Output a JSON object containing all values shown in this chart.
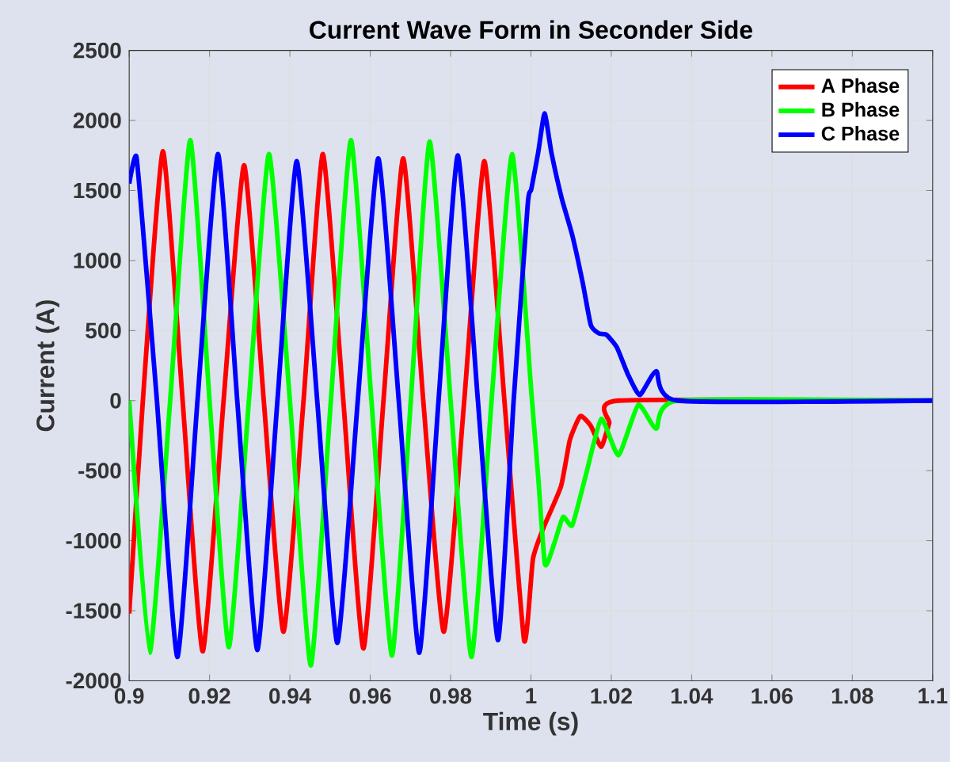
{
  "chart_data": {
    "type": "line",
    "title": "Current Wave Form in Seconder Side",
    "xlabel": "Time (s)",
    "ylabel": "Current (A)",
    "xlim": [
      0.9,
      1.1
    ],
    "ylim": [
      -2000,
      2500
    ],
    "xticks": [
      0.9,
      0.92,
      0.94,
      0.96,
      0.98,
      1,
      1.02,
      1.04,
      1.06,
      1.08,
      1.1
    ],
    "yticks": [
      -2000,
      -1500,
      -1000,
      -500,
      0,
      500,
      1000,
      1500,
      2000,
      2500
    ],
    "grid": true,
    "legend": "top right",
    "marker": "none",
    "line_style": "solid",
    "series": [
      {
        "name": "A Phase",
        "color": "#ff0000",
        "x": [
          0.9,
          0.9034,
          0.9084,
          0.9133,
          0.9183,
          0.9235,
          0.9286,
          0.9335,
          0.9384,
          0.9434,
          0.9482,
          0.9533,
          0.9583,
          0.9633,
          0.9682,
          0.9732,
          0.9783,
          0.9834,
          0.9884,
          0.9934,
          0.9983,
          1.0005,
          1.0031,
          1.0075,
          1.0097,
          1.0123,
          1.0149,
          1.0175,
          1.0195,
          1.0218,
          1.1
        ],
        "values": [
          -1520,
          0,
          1780,
          0,
          -1790,
          0,
          1680,
          0,
          -1650,
          0,
          1760,
          0,
          -1770,
          0,
          1730,
          0,
          -1650,
          0,
          1710,
          0,
          -1710,
          -1130,
          -910,
          -610,
          -280,
          -110,
          -180,
          -330,
          -160,
          0,
          0
        ]
      },
      {
        "name": "B Phase",
        "color": "#00ff00",
        "x": [
          0.9,
          0.9051,
          0.9102,
          0.9152,
          0.92,
          0.9248,
          0.9298,
          0.9348,
          0.94,
          0.9452,
          0.9502,
          0.9552,
          0.9603,
          0.9654,
          0.9701,
          0.9748,
          0.98,
          0.9852,
          0.9902,
          0.9953,
          1.0001,
          1.0018,
          1.0035,
          1.0058,
          1.008,
          1.0103,
          1.0136,
          1.0175,
          1.0218,
          1.0267,
          1.0312,
          1.0365,
          1.1
        ],
        "values": [
          0,
          -1800,
          0,
          1860,
          0,
          -1760,
          0,
          1760,
          0,
          -1890,
          0,
          1860,
          0,
          -1820,
          0,
          1850,
          0,
          -1830,
          0,
          1760,
          60,
          -540,
          -1170,
          -1020,
          -830,
          -890,
          -540,
          -130,
          -390,
          -30,
          -200,
          0,
          0
        ]
      },
      {
        "name": "C Phase",
        "color": "#0000ff",
        "x": [
          0.9,
          0.9018,
          0.9043,
          0.9069,
          0.912,
          0.917,
          0.9221,
          0.9269,
          0.9319,
          0.9369,
          0.9417,
          0.9468,
          0.9518,
          0.9569,
          0.962,
          0.9671,
          0.9722,
          0.977,
          0.9818,
          0.9868,
          0.9918,
          0.9957,
          0.9992,
          1.0001,
          1.0018,
          1.0034,
          1.0051,
          1.0077,
          1.0103,
          1.0129,
          1.0149,
          1.0169,
          1.0188,
          1.0214,
          1.0241,
          1.0271,
          1.0312,
          1.0365,
          1.1
        ],
        "values": [
          1550,
          1740,
          920,
          0,
          -1830,
          0,
          1760,
          0,
          -1780,
          0,
          1710,
          0,
          -1730,
          0,
          1730,
          0,
          -1800,
          0,
          1750,
          0,
          -1710,
          0,
          1400,
          1510,
          1770,
          2050,
          1770,
          1440,
          1180,
          840,
          540,
          480,
          470,
          380,
          190,
          40,
          210,
          0,
          0
        ]
      }
    ]
  }
}
